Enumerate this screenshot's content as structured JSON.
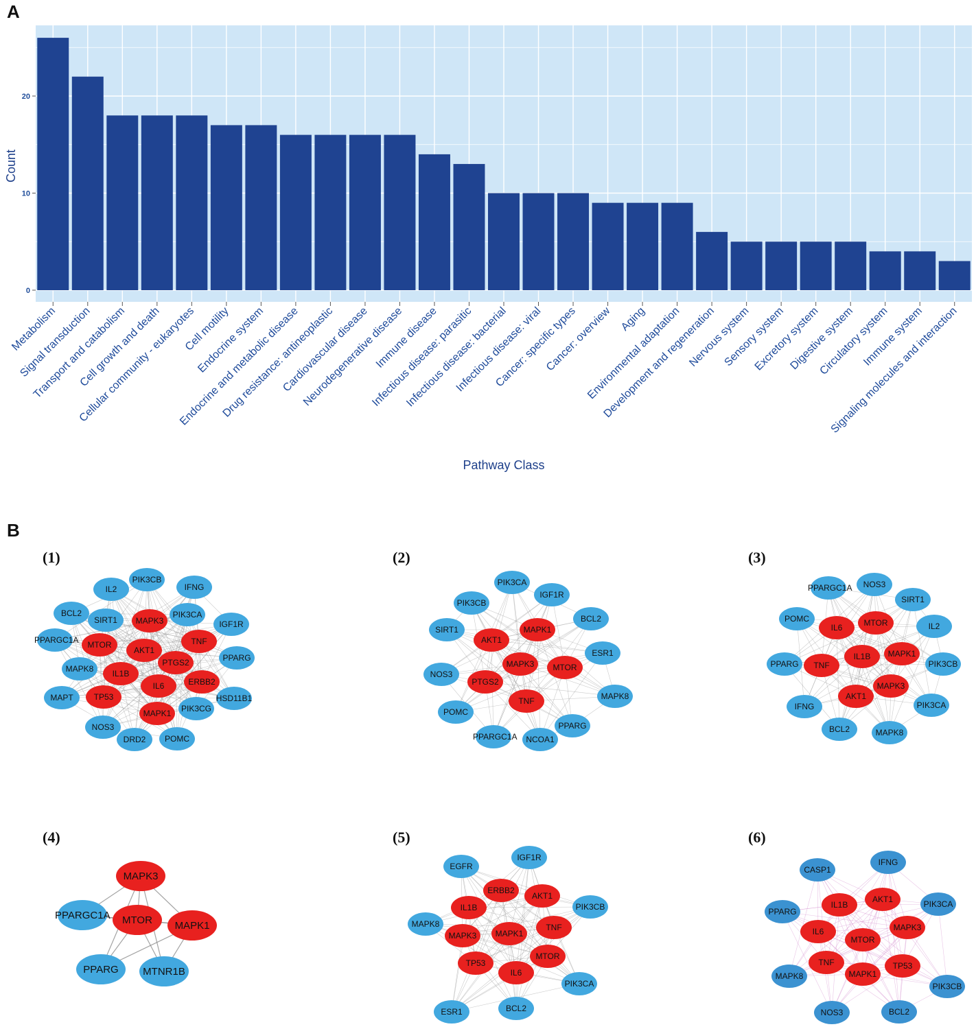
{
  "panel_labels": {
    "a": "A",
    "b": "B"
  },
  "colors": {
    "panel_bg": "#cfe6f7",
    "bar": "#1f4391",
    "grid": "#ffffff",
    "hub_node": "#e8211f",
    "peripheral_node": "#42a8df",
    "peripheral_node_dark": "#3b92d1",
    "edge": "#8c8c8c",
    "edge_pink": "#cf7fc7"
  },
  "chart_data": {
    "type": "bar",
    "title": "",
    "xlabel": "Pathway Class",
    "ylabel": "Count",
    "ylim": [
      0,
      27
    ],
    "yticks": [
      0,
      10,
      20
    ],
    "categories": [
      "Metabolism",
      "Signal transduction",
      "Transport and catabolism",
      "Cell growth and death",
      "Cellular community - eukaryotes",
      "Cell motility",
      "Endocrine system",
      "Endocrine and metabolic disease",
      "Drug resistance: antineoplastic",
      "Cardiovascular disease",
      "Neurodegenerative disease",
      "Immune disease",
      "Infectious disease: parasitic",
      "Infectious disease: bacterial",
      "Infectious disease: viral",
      "Cancer: specific types",
      "Cancer: overview",
      "Aging",
      "Environmental adaptation",
      "Development and regeneration",
      "Nervous system",
      "Sensory system",
      "Excretory system",
      "Digestive system",
      "Circulatory system",
      "Immune system",
      "Signaling molecules and interaction"
    ],
    "values": [
      26,
      22,
      18,
      18,
      18,
      17,
      17,
      16,
      16,
      16,
      16,
      14,
      13,
      10,
      10,
      10,
      9,
      9,
      9,
      6,
      5,
      5,
      5,
      5,
      4,
      4,
      3
    ]
  },
  "networks": [
    {
      "label": "(1)",
      "hubs": [
        "MAPK3",
        "MTOR",
        "AKT1",
        "TNF",
        "PTGS2",
        "IL1B",
        "IL6",
        "ERBB2",
        "TP53",
        "MAPK1"
      ],
      "periphery": [
        "IL2",
        "PIK3CB",
        "IFNG",
        "BCL2",
        "SIRT1",
        "PIK3CA",
        "IGF1R",
        "PPARGC1A",
        "PPARG",
        "MAPK8",
        "MAPT",
        "HSD11B1",
        "PIK3CG",
        "NOS3",
        "DRD2",
        "POMC"
      ]
    },
    {
      "label": "(2)",
      "hubs": [
        "AKT1",
        "MAPK1",
        "MAPK3",
        "MTOR",
        "PTGS2",
        "TNF"
      ],
      "periphery": [
        "PIK3CA",
        "PIK3CB",
        "IGF1R",
        "SIRT1",
        "BCL2",
        "ESR1",
        "NOS3",
        "MAPK8",
        "POMC",
        "PPARG",
        "PPARGC1A",
        "NCOA1"
      ]
    },
    {
      "label": "(3)",
      "hubs": [
        "IL6",
        "MTOR",
        "IL1B",
        "MAPK1",
        "TNF",
        "MAPK3",
        "AKT1"
      ],
      "periphery": [
        "PPARGC1A",
        "NOS3",
        "SIRT1",
        "POMC",
        "IL2",
        "PPARG",
        "PIK3CB",
        "IFNG",
        "PIK3CA",
        "BCL2",
        "MAPK8"
      ]
    },
    {
      "label": "(4)",
      "hubs": [
        "MAPK3",
        "MTOR",
        "MAPK1"
      ],
      "periphery": [
        "PPARGC1A",
        "PPARG",
        "MTNR1B"
      ]
    },
    {
      "label": "(5)",
      "hubs": [
        "ERBB2",
        "AKT1",
        "IL1B",
        "MAPK3",
        "MAPK1",
        "TNF",
        "TP53",
        "IL6",
        "MTOR"
      ],
      "periphery": [
        "EGFR",
        "IGF1R",
        "PIK3CB",
        "MAPK8",
        "ESR1",
        "BCL2",
        "PIK3CA"
      ]
    },
    {
      "label": "(6)",
      "hubs": [
        "IL1B",
        "AKT1",
        "IL6",
        "MTOR",
        "MAPK3",
        "TNF",
        "TP53",
        "MAPK1"
      ],
      "periphery": [
        "CASP1",
        "IFNG",
        "PPARG",
        "PIK3CA",
        "MAPK8",
        "PIK3CB",
        "NOS3",
        "BCL2"
      ]
    }
  ]
}
